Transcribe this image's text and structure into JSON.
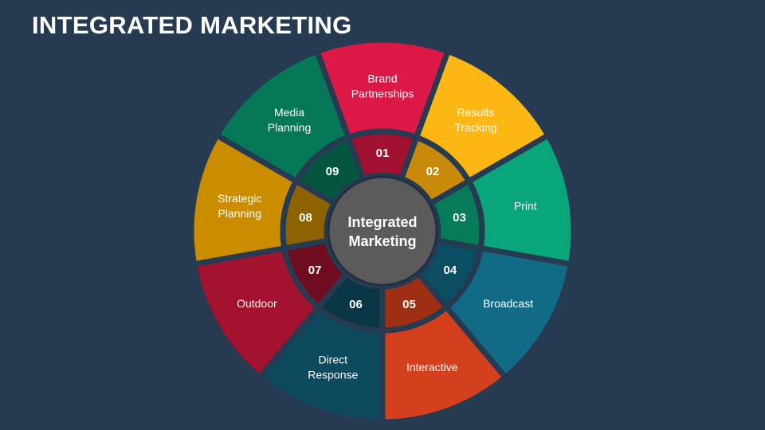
{
  "title": "INTEGRATED MARKETING",
  "center": {
    "lines": [
      "Integrated",
      "Marketing"
    ],
    "color": "#5b5b5b"
  },
  "segments": [
    {
      "number": "01",
      "label": [
        "Brand",
        "Partnerships"
      ],
      "color": "#dc1847",
      "inner_color": "#a1102f"
    },
    {
      "number": "02",
      "label": [
        "Results",
        "Tracking"
      ],
      "color": "#fdb714",
      "inner_color": "#c98a0b"
    },
    {
      "number": "03",
      "label": [
        "Print"
      ],
      "color": "#0aa57a",
      "inner_color": "#077a5a"
    },
    {
      "number": "04",
      "label": [
        "Broadcast"
      ],
      "color": "#116b87",
      "inner_color": "#0b4d62"
    },
    {
      "number": "05",
      "label": [
        "Interactive"
      ],
      "color": "#d4401d",
      "inner_color": "#9e2f14"
    },
    {
      "number": "06",
      "label": [
        "Direct",
        "Response"
      ],
      "color": "#0e4a5e",
      "inner_color": "#0a3545"
    },
    {
      "number": "07",
      "label": [
        "Outdoor"
      ],
      "color": "#a3122f",
      "inner_color": "#6f0c20"
    },
    {
      "number": "08",
      "label": [
        "Strategic",
        "Planning"
      ],
      "color": "#cc8c00",
      "inner_color": "#8f6200"
    },
    {
      "number": "09",
      "label": [
        "Media",
        "Planning"
      ],
      "color": "#077857",
      "inner_color": "#055640"
    }
  ],
  "background": "#263a52"
}
